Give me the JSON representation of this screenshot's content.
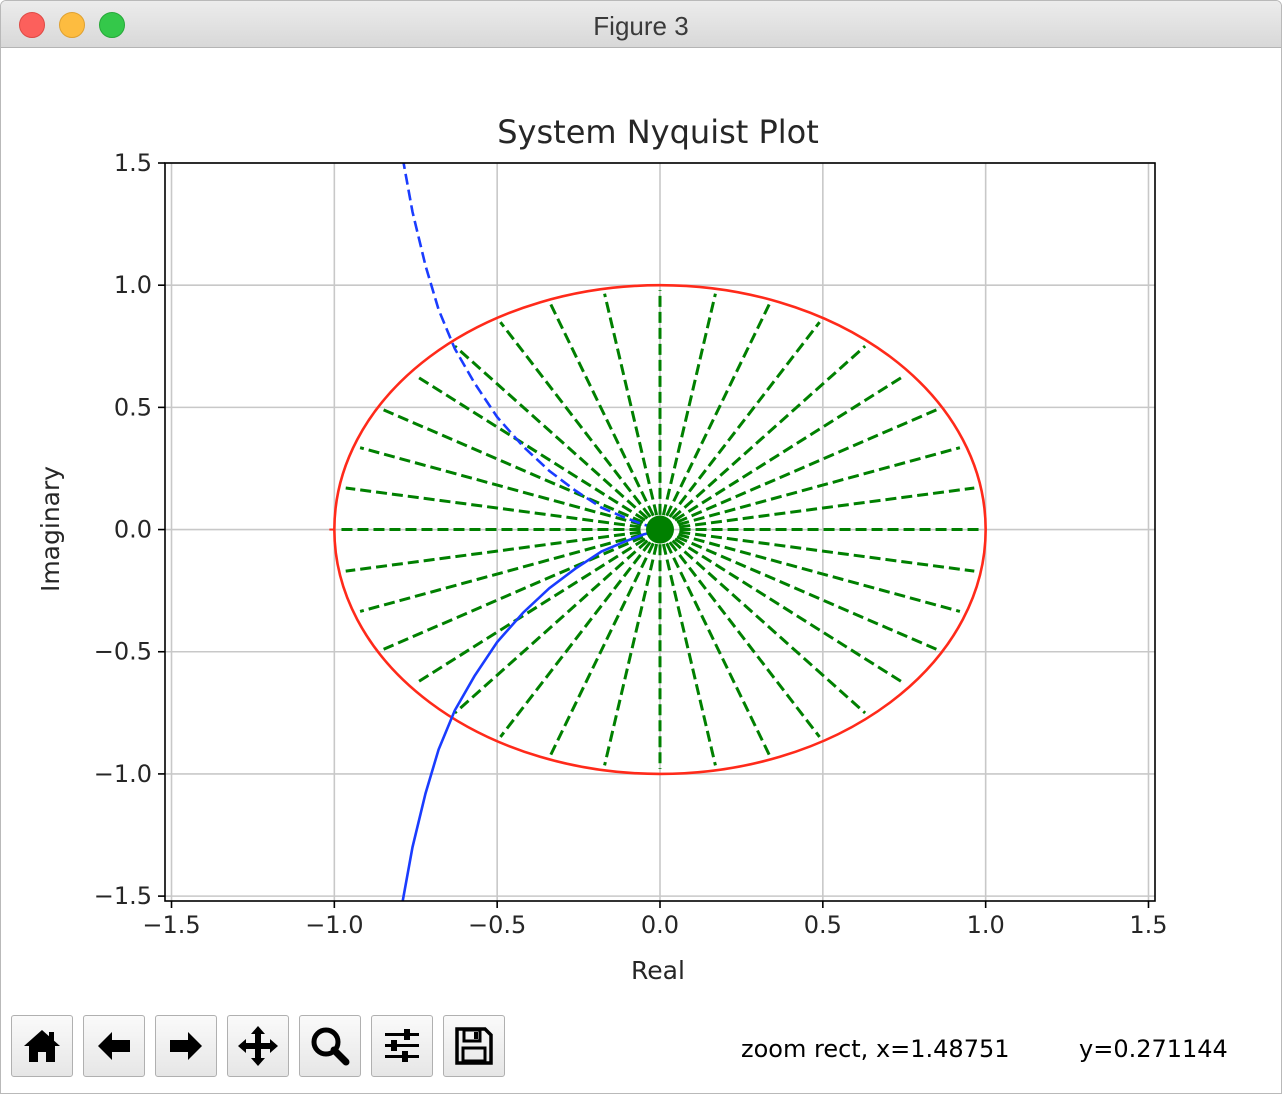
{
  "window": {
    "title": "Figure 3"
  },
  "toolbar": {
    "buttons": [
      {
        "name": "home",
        "icon": "home-icon"
      },
      {
        "name": "back",
        "icon": "arrow-left-icon"
      },
      {
        "name": "forward",
        "icon": "arrow-right-icon"
      },
      {
        "name": "pan",
        "icon": "move-icon"
      },
      {
        "name": "zoom",
        "icon": "magnifier-icon"
      },
      {
        "name": "subplots",
        "icon": "sliders-icon"
      },
      {
        "name": "save",
        "icon": "floppy-disk-icon"
      }
    ]
  },
  "status": {
    "mode_x": "zoom rect, x=1.48751",
    "y": "y=0.271144"
  },
  "colors": {
    "unit_circle": "#ff2a1a",
    "nyquist": "#1a3cff",
    "radial": "#008000",
    "grid": "#c8c8c8"
  },
  "chart_data": {
    "type": "line",
    "title": "System Nyquist Plot",
    "xlabel": "Real",
    "ylabel": "Imaginary",
    "xlim": [
      -1.52,
      1.52
    ],
    "ylim": [
      -1.52,
      1.5
    ],
    "xticks": [
      -1.5,
      -1.0,
      -0.5,
      0.0,
      0.5,
      1.0,
      1.5
    ],
    "xtick_labels": [
      "−1.5",
      "−1.0",
      "−0.5",
      "0.0",
      "0.5",
      "1.0",
      "1.5"
    ],
    "yticks": [
      -1.5,
      -1.0,
      -0.5,
      0.0,
      0.5,
      1.0,
      1.5
    ],
    "ytick_labels": [
      "−1.5",
      "−1.0",
      "−0.5",
      "0.0",
      "0.5",
      "1.0",
      "1.5"
    ],
    "grid": true,
    "series": [
      {
        "style": "solid",
        "color": "#ff2a1a",
        "shape": "circle",
        "center": [
          0,
          0
        ],
        "radius": 1.0
      },
      {
        "style": "solid",
        "color": "#1a3cff",
        "x": [
          -0.79,
          -0.76,
          -0.72,
          -0.68,
          -0.63,
          -0.57,
          -0.5,
          -0.42,
          -0.34,
          -0.26,
          -0.18,
          -0.11,
          -0.05,
          -0.02
        ],
        "y": [
          -1.52,
          -1.3,
          -1.08,
          -0.9,
          -0.74,
          -0.6,
          -0.46,
          -0.34,
          -0.24,
          -0.16,
          -0.09,
          -0.05,
          -0.02,
          -0.01
        ]
      },
      {
        "style": "dashed",
        "color": "#1a3cff",
        "x": [
          -0.79,
          -0.76,
          -0.72,
          -0.68,
          -0.63,
          -0.57,
          -0.5,
          -0.42,
          -0.34,
          -0.26,
          -0.18,
          -0.11,
          -0.05,
          -0.02
        ],
        "y": [
          1.52,
          1.3,
          1.08,
          0.9,
          0.74,
          0.6,
          0.46,
          0.34,
          0.24,
          0.16,
          0.09,
          0.05,
          0.02,
          0.01
        ]
      },
      {
        "style": "dashed",
        "color": "#008000",
        "shape": "radial_segments",
        "count": 36,
        "inner_radius": 0.06,
        "outer_radius": 0.98
      },
      {
        "style": "marker",
        "color": "#008000",
        "x": [
          0.0
        ],
        "y": [
          0.0
        ]
      }
    ]
  }
}
